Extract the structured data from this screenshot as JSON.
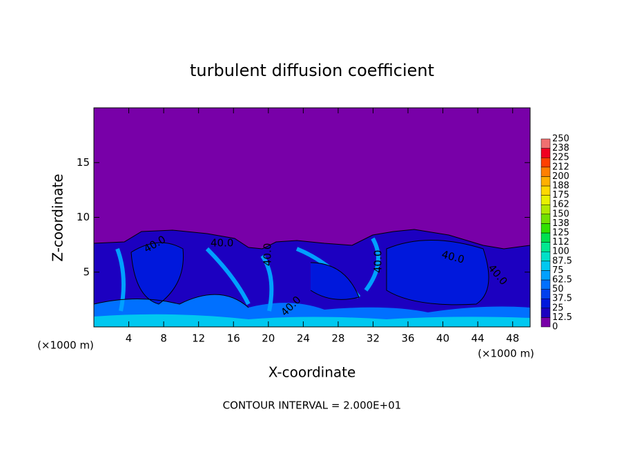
{
  "chart_data": {
    "type": "heatmap",
    "title": "turbulent diffusion coefficient",
    "xlabel": "X-coordinate",
    "ylabel": "Z-coordinate",
    "x_unit_labels": [
      "(×1000 m)",
      "(×1000 m)"
    ],
    "footer": "CONTOUR INTERVAL = 2.000E+01",
    "contour_labels": [
      "40.0",
      "40.0",
      "40.0",
      "40.0",
      "40.0",
      "40.0",
      "40.0"
    ],
    "xlim": [
      0,
      50
    ],
    "xticks": [
      4,
      8,
      12,
      16,
      20,
      24,
      28,
      32,
      36,
      40,
      44,
      48
    ],
    "ylim": [
      0,
      20
    ],
    "yticks": [
      5,
      10,
      15
    ],
    "colorbar": {
      "lim": [
        0,
        250
      ],
      "ticks": [
        0,
        12.5,
        25,
        37.5,
        50,
        62.5,
        75,
        87.5,
        100,
        {
          "value": 112.5,
          "label": "112"
        },
        125,
        {
          "value": 137.5,
          "label": "138"
        },
        150,
        {
          "value": 162.5,
          "label": "162"
        },
        175,
        {
          "value": 187.5,
          "label": "188"
        },
        200,
        {
          "value": 212.5,
          "label": "212"
        },
        225,
        {
          "value": 237.5,
          "label": "238"
        },
        250
      ],
      "colors": [
        "#7800a8",
        "#1c00c0",
        "#0018dc",
        "#0040ee",
        "#0070ff",
        "#00a0ff",
        "#00c8f0",
        "#00e0c8",
        "#00e890",
        "#00e050",
        "#30e000",
        "#70e000",
        "#b0e800",
        "#e8f000",
        "#ffd800",
        "#ffb000",
        "#ff8000",
        "#ff4000",
        "#f00020",
        "#f07070"
      ]
    }
  }
}
